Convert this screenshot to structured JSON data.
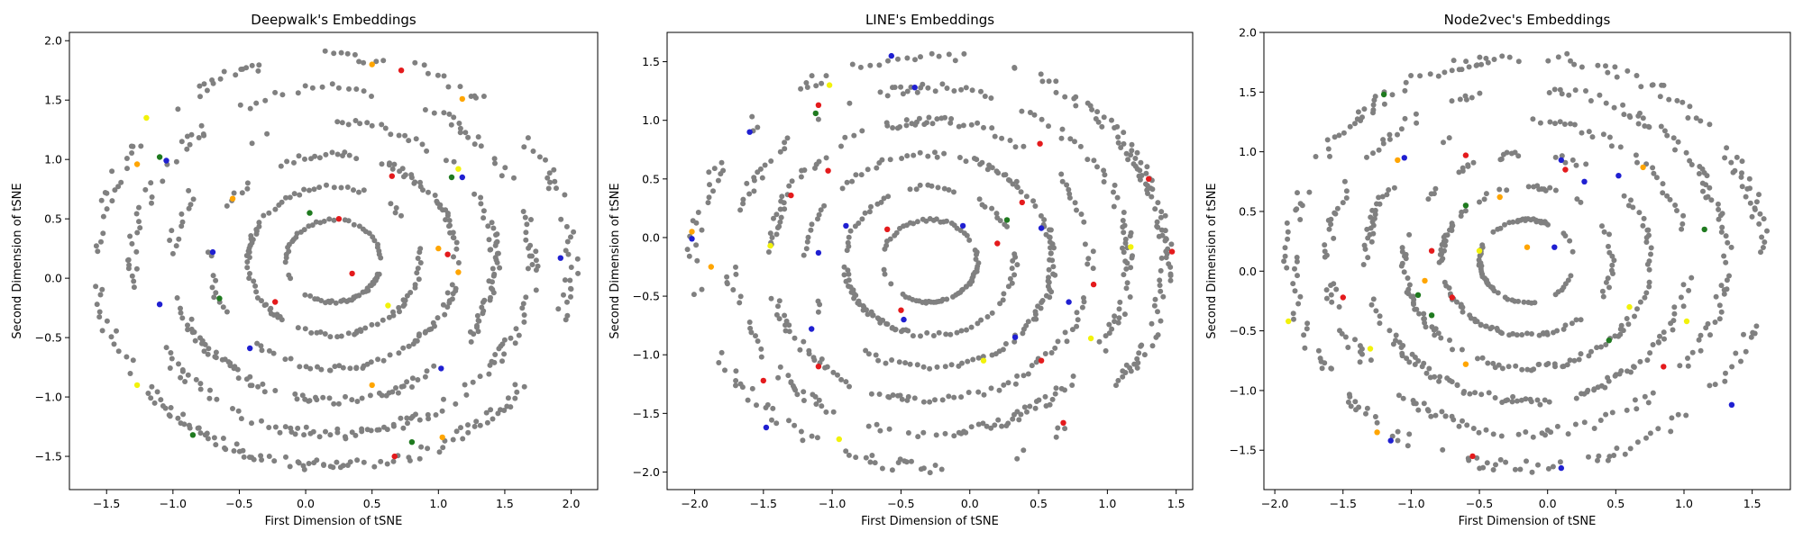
{
  "colors": {
    "background_points": "#808080",
    "red": "#e41a1c",
    "blue": "#1f1fd1",
    "green": "#1f7a1f",
    "yellow": "#f2f20a",
    "orange": "#ffa500"
  },
  "chart_data": [
    {
      "type": "scatter",
      "title": "Deepwalk's Embeddings",
      "xlabel": "First Dimension of tSNE",
      "ylabel": "Second Dimension of tSNE",
      "xlim": [
        -1.78,
        2.2
      ],
      "ylim": [
        -1.78,
        2.07
      ],
      "xticks": [
        -1.5,
        -1.0,
        -0.5,
        0.0,
        0.5,
        1.0,
        1.5,
        2.0
      ],
      "yticks": [
        -1.5,
        -1.0,
        -0.5,
        0.0,
        0.5,
        1.0,
        1.5,
        2.0
      ],
      "grid": false,
      "legend": "none",
      "structure": "dense gray point cloud arranged in concentric rings with a few colored points",
      "colored_points": [
        {
          "x": -1.1,
          "y": 1.02,
          "c": "green"
        },
        {
          "x": -1.05,
          "y": 0.99,
          "c": "blue"
        },
        {
          "x": -1.27,
          "y": 0.96,
          "c": "orange"
        },
        {
          "x": -0.55,
          "y": 0.67,
          "c": "orange"
        },
        {
          "x": 0.03,
          "y": 0.55,
          "c": "green"
        },
        {
          "x": 0.25,
          "y": 0.5,
          "c": "red"
        },
        {
          "x": 0.65,
          "y": 0.86,
          "c": "red"
        },
        {
          "x": 1.1,
          "y": 0.85,
          "c": "green"
        },
        {
          "x": 1.15,
          "y": 0.92,
          "c": "yellow"
        },
        {
          "x": 1.18,
          "y": 0.85,
          "c": "blue"
        },
        {
          "x": 1.0,
          "y": 0.25,
          "c": "orange"
        },
        {
          "x": 1.07,
          "y": 0.2,
          "c": "red"
        },
        {
          "x": 1.15,
          "y": 0.05,
          "c": "orange"
        },
        {
          "x": 1.92,
          "y": 0.17,
          "c": "blue"
        },
        {
          "x": -0.7,
          "y": 0.22,
          "c": "blue"
        },
        {
          "x": -1.1,
          "y": -0.22,
          "c": "blue"
        },
        {
          "x": -0.65,
          "y": -0.17,
          "c": "green"
        },
        {
          "x": -0.23,
          "y": -0.2,
          "c": "red"
        },
        {
          "x": 0.35,
          "y": 0.04,
          "c": "red"
        },
        {
          "x": 0.62,
          "y": -0.23,
          "c": "yellow"
        },
        {
          "x": -0.42,
          "y": -0.59,
          "c": "blue"
        },
        {
          "x": -1.27,
          "y": -0.9,
          "c": "yellow"
        },
        {
          "x": 0.5,
          "y": -0.9,
          "c": "orange"
        },
        {
          "x": 1.02,
          "y": -0.76,
          "c": "blue"
        },
        {
          "x": -0.85,
          "y": -1.32,
          "c": "green"
        },
        {
          "x": 0.8,
          "y": -1.38,
          "c": "green"
        },
        {
          "x": 0.67,
          "y": -1.5,
          "c": "red"
        },
        {
          "x": 1.03,
          "y": -1.34,
          "c": "orange"
        },
        {
          "x": 1.18,
          "y": 1.51,
          "c": "orange"
        },
        {
          "x": 0.72,
          "y": 1.75,
          "c": "red"
        },
        {
          "x": 0.5,
          "y": 1.8,
          "c": "orange"
        },
        {
          "x": -1.2,
          "y": 1.35,
          "c": "yellow"
        }
      ]
    },
    {
      "type": "scatter",
      "title": "LINE's Embeddings",
      "xlabel": "First Dimension of tSNE",
      "ylabel": "Second Dimension of tSNE",
      "xlim": [
        -2.2,
        1.62
      ],
      "ylim": [
        -2.15,
        1.75
      ],
      "xticks": [
        -2.0,
        -1.5,
        -1.0,
        -0.5,
        0.0,
        0.5,
        1.0,
        1.5
      ],
      "yticks": [
        -2.0,
        -1.5,
        -1.0,
        -0.5,
        0.0,
        0.5,
        1.0,
        1.5
      ],
      "grid": false,
      "legend": "none",
      "structure": "dense gray point cloud arranged in concentric rings with a few colored points",
      "colored_points": [
        {
          "x": -0.57,
          "y": 1.55,
          "c": "blue"
        },
        {
          "x": -0.4,
          "y": 1.28,
          "c": "blue"
        },
        {
          "x": -1.1,
          "y": 1.13,
          "c": "red"
        },
        {
          "x": -1.12,
          "y": 1.06,
          "c": "green"
        },
        {
          "x": -1.02,
          "y": 1.3,
          "c": "yellow"
        },
        {
          "x": -1.6,
          "y": 0.9,
          "c": "blue"
        },
        {
          "x": -1.03,
          "y": 0.57,
          "c": "red"
        },
        {
          "x": -1.3,
          "y": 0.36,
          "c": "red"
        },
        {
          "x": 0.51,
          "y": 0.8,
          "c": "red"
        },
        {
          "x": 1.3,
          "y": 0.5,
          "c": "red"
        },
        {
          "x": -2.02,
          "y": 0.05,
          "c": "orange"
        },
        {
          "x": -2.02,
          "y": -0.01,
          "c": "blue"
        },
        {
          "x": -1.88,
          "y": -0.25,
          "c": "orange"
        },
        {
          "x": -1.45,
          "y": -0.07,
          "c": "yellow"
        },
        {
          "x": -1.1,
          "y": -0.13,
          "c": "blue"
        },
        {
          "x": -0.9,
          "y": 0.1,
          "c": "blue"
        },
        {
          "x": -0.6,
          "y": 0.07,
          "c": "red"
        },
        {
          "x": -0.05,
          "y": 0.1,
          "c": "blue"
        },
        {
          "x": 0.27,
          "y": 0.15,
          "c": "green"
        },
        {
          "x": 0.38,
          "y": 0.3,
          "c": "red"
        },
        {
          "x": 0.2,
          "y": -0.05,
          "c": "red"
        },
        {
          "x": 0.52,
          "y": 0.08,
          "c": "blue"
        },
        {
          "x": 1.17,
          "y": -0.08,
          "c": "yellow"
        },
        {
          "x": 1.47,
          "y": -0.12,
          "c": "red"
        },
        {
          "x": 0.9,
          "y": -0.4,
          "c": "red"
        },
        {
          "x": -0.5,
          "y": -0.62,
          "c": "red"
        },
        {
          "x": -0.48,
          "y": -0.7,
          "c": "blue"
        },
        {
          "x": 0.33,
          "y": -0.85,
          "c": "blue"
        },
        {
          "x": -1.15,
          "y": -0.78,
          "c": "blue"
        },
        {
          "x": -1.1,
          "y": -1.1,
          "c": "red"
        },
        {
          "x": 0.52,
          "y": -1.05,
          "c": "red"
        },
        {
          "x": -1.5,
          "y": -1.22,
          "c": "red"
        },
        {
          "x": -1.48,
          "y": -1.62,
          "c": "blue"
        },
        {
          "x": 0.68,
          "y": -1.58,
          "c": "red"
        },
        {
          "x": 0.1,
          "y": -1.05,
          "c": "yellow"
        },
        {
          "x": 0.88,
          "y": -0.86,
          "c": "yellow"
        },
        {
          "x": 0.72,
          "y": -0.55,
          "c": "blue"
        },
        {
          "x": -0.95,
          "y": -1.72,
          "c": "yellow"
        }
      ]
    },
    {
      "type": "scatter",
      "title": "Node2vec's Embeddings",
      "xlabel": "First Dimension of tSNE",
      "ylabel": "Second Dimension of tSNE",
      "xlim": [
        -2.08,
        1.78
      ],
      "ylim": [
        -1.83,
        2.0
      ],
      "xticks": [
        -2.0,
        -1.5,
        -1.0,
        -0.5,
        0.0,
        0.5,
        1.0,
        1.5
      ],
      "yticks": [
        -1.5,
        -1.0,
        -0.5,
        0.0,
        0.5,
        1.0,
        1.5,
        2.0
      ],
      "grid": false,
      "legend": "none",
      "structure": "dense gray point cloud arranged in concentric rings with a few colored points",
      "colored_points": [
        {
          "x": -1.2,
          "y": 1.48,
          "c": "green"
        },
        {
          "x": -1.05,
          "y": 0.95,
          "c": "blue"
        },
        {
          "x": -1.1,
          "y": 0.93,
          "c": "orange"
        },
        {
          "x": -0.6,
          "y": 0.97,
          "c": "red"
        },
        {
          "x": 0.1,
          "y": 0.93,
          "c": "blue"
        },
        {
          "x": 0.13,
          "y": 0.85,
          "c": "red"
        },
        {
          "x": 0.27,
          "y": 0.75,
          "c": "blue"
        },
        {
          "x": 0.52,
          "y": 0.8,
          "c": "blue"
        },
        {
          "x": 0.7,
          "y": 0.87,
          "c": "orange"
        },
        {
          "x": 1.15,
          "y": 0.35,
          "c": "green"
        },
        {
          "x": -0.6,
          "y": 0.55,
          "c": "green"
        },
        {
          "x": -0.35,
          "y": 0.62,
          "c": "orange"
        },
        {
          "x": -0.85,
          "y": 0.17,
          "c": "red"
        },
        {
          "x": -0.5,
          "y": 0.17,
          "c": "yellow"
        },
        {
          "x": -0.15,
          "y": 0.2,
          "c": "orange"
        },
        {
          "x": 0.05,
          "y": 0.2,
          "c": "blue"
        },
        {
          "x": -0.95,
          "y": -0.2,
          "c": "green"
        },
        {
          "x": -0.85,
          "y": -0.37,
          "c": "green"
        },
        {
          "x": -0.7,
          "y": -0.22,
          "c": "red"
        },
        {
          "x": -0.9,
          "y": -0.08,
          "c": "orange"
        },
        {
          "x": -1.5,
          "y": -0.22,
          "c": "red"
        },
        {
          "x": 0.45,
          "y": -0.58,
          "c": "green"
        },
        {
          "x": 1.02,
          "y": -0.42,
          "c": "yellow"
        },
        {
          "x": 0.85,
          "y": -0.8,
          "c": "red"
        },
        {
          "x": 0.6,
          "y": -0.3,
          "c": "yellow"
        },
        {
          "x": -1.3,
          "y": -0.65,
          "c": "yellow"
        },
        {
          "x": -1.15,
          "y": -1.42,
          "c": "blue"
        },
        {
          "x": -1.25,
          "y": -1.35,
          "c": "orange"
        },
        {
          "x": -0.55,
          "y": -1.55,
          "c": "red"
        },
        {
          "x": 0.1,
          "y": -1.65,
          "c": "blue"
        },
        {
          "x": 1.35,
          "y": -1.12,
          "c": "blue"
        },
        {
          "x": -1.9,
          "y": -0.42,
          "c": "yellow"
        },
        {
          "x": -0.6,
          "y": -0.78,
          "c": "orange"
        }
      ]
    }
  ]
}
